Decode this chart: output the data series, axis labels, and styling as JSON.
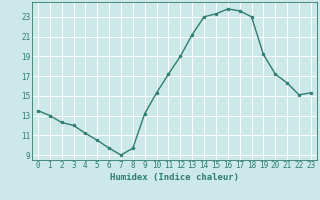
{
  "x": [
    0,
    1,
    2,
    3,
    4,
    5,
    6,
    7,
    8,
    9,
    10,
    11,
    12,
    13,
    14,
    15,
    16,
    17,
    18,
    19,
    20,
    21,
    22,
    23
  ],
  "y": [
    13.5,
    13.0,
    12.3,
    12.0,
    11.2,
    10.5,
    9.7,
    9.0,
    9.7,
    13.2,
    15.3,
    17.2,
    19.0,
    21.2,
    23.0,
    23.3,
    23.8,
    23.6,
    23.0,
    19.2,
    17.2,
    16.3,
    15.1,
    15.3
  ],
  "line_color": "#2e7d6e",
  "marker": "o",
  "marker_size": 2.0,
  "bg_color": "#cce8e8",
  "grid_color": "#ffffff",
  "tick_color": "#2e7d6e",
  "xlabel": "Humidex (Indice chaleur)",
  "xlim": [
    -0.5,
    23.5
  ],
  "ylim": [
    8.5,
    24.5
  ],
  "yticks": [
    9,
    11,
    13,
    15,
    17,
    19,
    21,
    23
  ],
  "xticks": [
    0,
    1,
    2,
    3,
    4,
    5,
    6,
    7,
    8,
    9,
    10,
    11,
    12,
    13,
    14,
    15,
    16,
    17,
    18,
    19,
    20,
    21,
    22,
    23
  ],
  "xlabel_fontsize": 6.5,
  "tick_fontsize": 5.5,
  "linewidth": 1.0
}
